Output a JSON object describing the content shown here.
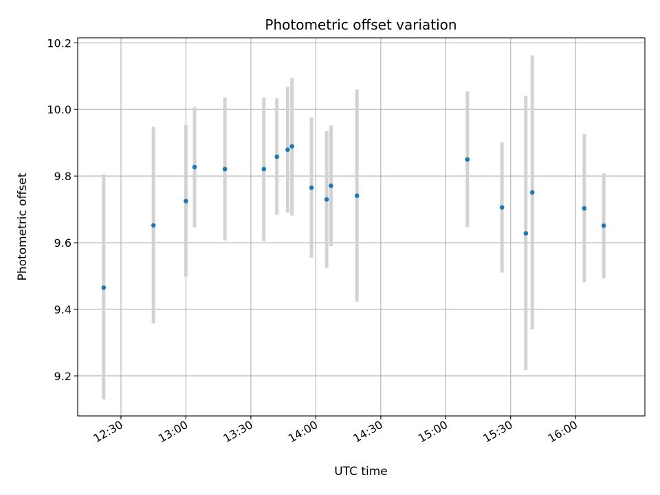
{
  "chart_data": {
    "type": "scatter",
    "title": "Photometric offset variation",
    "xlabel": "UTC time",
    "ylabel": "Photometric offset",
    "x_axis_type": "time",
    "xlim": [
      "12:10",
      "16:32"
    ],
    "ylim": [
      9.08,
      10.215
    ],
    "x_ticks": [
      "12:30",
      "13:00",
      "13:30",
      "14:00",
      "14:30",
      "15:00",
      "15:30",
      "16:00"
    ],
    "y_ticks": [
      9.2,
      9.4,
      9.6,
      9.8,
      10.0,
      10.2
    ],
    "y_tick_labels": [
      "9.2",
      "9.4",
      "9.6",
      "9.8",
      "10.0",
      "10.2"
    ],
    "grid": true,
    "legend": "none",
    "marker_color": "#1f77b4",
    "errorbar_color": "#d3d3d3",
    "points": [
      {
        "x": "12:22",
        "y": 9.465,
        "ymin": 9.13,
        "ymax": 9.805
      },
      {
        "x": "12:45",
        "y": 9.652,
        "ymin": 9.358,
        "ymax": 9.948
      },
      {
        "x": "13:00",
        "y": 9.725,
        "ymin": 9.498,
        "ymax": 9.953
      },
      {
        "x": "13:04",
        "y": 9.827,
        "ymin": 9.646,
        "ymax": 10.007
      },
      {
        "x": "13:18",
        "y": 9.821,
        "ymin": 9.607,
        "ymax": 10.036
      },
      {
        "x": "13:36",
        "y": 9.821,
        "ymin": 9.604,
        "ymax": 10.036
      },
      {
        "x": "13:42",
        "y": 9.858,
        "ymin": 9.684,
        "ymax": 10.033
      },
      {
        "x": "13:47",
        "y": 9.879,
        "ymin": 9.69,
        "ymax": 10.068
      },
      {
        "x": "13:49",
        "y": 9.889,
        "ymin": 9.681,
        "ymax": 10.095
      },
      {
        "x": "13:58",
        "y": 9.765,
        "ymin": 9.555,
        "ymax": 9.976
      },
      {
        "x": "14:05",
        "y": 9.73,
        "ymin": 9.524,
        "ymax": 9.935
      },
      {
        "x": "14:07",
        "y": 9.771,
        "ymin": 9.59,
        "ymax": 9.952
      },
      {
        "x": "14:19",
        "y": 9.741,
        "ymin": 9.423,
        "ymax": 10.06
      },
      {
        "x": "15:10",
        "y": 9.85,
        "ymin": 9.647,
        "ymax": 10.054
      },
      {
        "x": "15:26",
        "y": 9.706,
        "ymin": 9.51,
        "ymax": 9.901
      },
      {
        "x": "15:37",
        "y": 9.628,
        "ymin": 9.218,
        "ymax": 10.041
      },
      {
        "x": "15:40",
        "y": 9.751,
        "ymin": 9.34,
        "ymax": 10.162
      },
      {
        "x": "16:04",
        "y": 9.703,
        "ymin": 9.482,
        "ymax": 9.926
      },
      {
        "x": "16:13",
        "y": 9.651,
        "ymin": 9.493,
        "ymax": 9.808
      }
    ]
  }
}
